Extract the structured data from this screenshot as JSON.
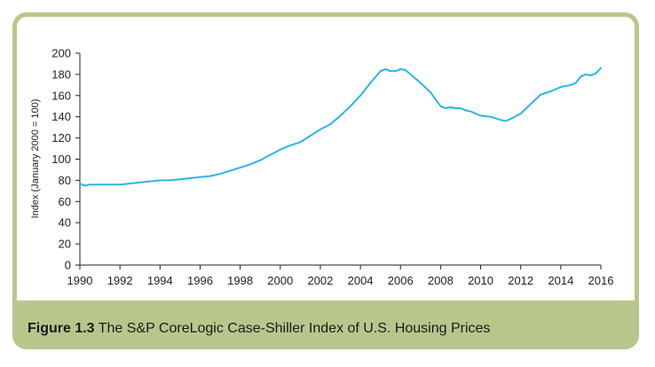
{
  "caption": {
    "number": "Figure 1.3",
    "text": "The S&P CoreLogic Case-Shiller Index of U.S. Housing Prices"
  },
  "colors": {
    "line": "#29b6e6",
    "frame": "#b7c78c",
    "axis": "#222222"
  },
  "chart_data": {
    "type": "line",
    "title": "",
    "xlabel": "",
    "ylabel": "Index (January 2000 = 100)",
    "xlim": [
      1990,
      2016
    ],
    "ylim": [
      0,
      200
    ],
    "x_ticks": [
      "1990",
      "1992",
      "1994",
      "1996",
      "1998",
      "2000",
      "2002",
      "2004",
      "2006",
      "2008",
      "2010",
      "2012",
      "2014",
      "2016"
    ],
    "y_ticks": [
      "0",
      "20",
      "40",
      "60",
      "80",
      "100",
      "120",
      "140",
      "160",
      "180",
      "200"
    ],
    "grid": false,
    "series": [
      {
        "x": [
          1990.0,
          1990.25,
          1990.5,
          1991.0,
          1991.5,
          1992.0,
          1992.5,
          1993.0,
          1993.5,
          1994.0,
          1994.5,
          1995.0,
          1995.5,
          1996.0,
          1996.5,
          1997.0,
          1997.5,
          1998.0,
          1998.5,
          1999.0,
          1999.5,
          2000.0,
          2000.5,
          2001.0,
          2001.5,
          2002.0,
          2002.5,
          2003.0,
          2003.5,
          2004.0,
          2004.5,
          2005.0,
          2005.25,
          2005.5,
          2005.75,
          2006.0,
          2006.25,
          2006.5,
          2007.0,
          2007.5,
          2008.0,
          2008.25,
          2008.5,
          2008.75,
          2009.0,
          2009.25,
          2009.5,
          2010.0,
          2010.5,
          2011.0,
          2011.25,
          2011.5,
          2012.0,
          2012.5,
          2013.0,
          2013.5,
          2014.0,
          2014.5,
          2014.75,
          2015.0,
          2015.25,
          2015.5,
          2015.75,
          2016.0
        ],
        "y": [
          77,
          75,
          76,
          76,
          76,
          76,
          77,
          78,
          79,
          80,
          80,
          81,
          82,
          83,
          84,
          86,
          89,
          92,
          95,
          99,
          104,
          109,
          113,
          116,
          122,
          128,
          133,
          141,
          150,
          160,
          172,
          183,
          185,
          183,
          183,
          185,
          184,
          180,
          172,
          163,
          150,
          148,
          149,
          148,
          148,
          146,
          145,
          141,
          140,
          137,
          136,
          138,
          143,
          152,
          161,
          164,
          168,
          170,
          172,
          178,
          180,
          179,
          181,
          186
        ]
      }
    ]
  }
}
